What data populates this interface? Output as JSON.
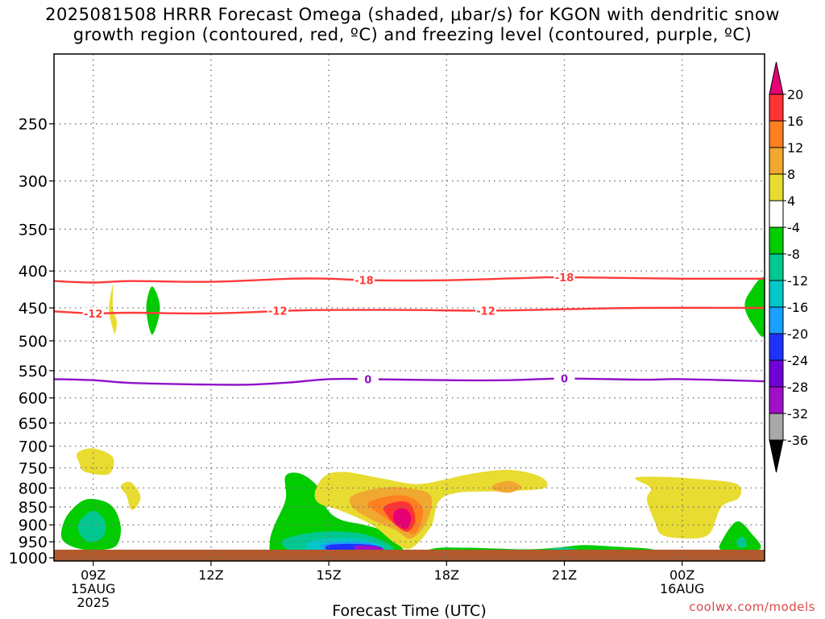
{
  "title": {
    "line1": "2025081508 HRRR Forecast Omega (shaded, μbar/s) for KGON with dendritic snow",
    "line2": "growth region (contoured, red, ºC) and freezing level (contoured, purple, ºC)"
  },
  "watermark": "coolwx.com/models",
  "chart_data": {
    "type": "heatmap",
    "xlabel": "Forecast Time (UTC)",
    "ylabel": "",
    "x_ticks": [
      {
        "hour": 9,
        "lines": [
          "09Z",
          "15AUG",
          "2025"
        ]
      },
      {
        "hour": 12,
        "lines": [
          "12Z"
        ]
      },
      {
        "hour": 15,
        "lines": [
          "15Z"
        ]
      },
      {
        "hour": 18,
        "lines": [
          "18Z"
        ]
      },
      {
        "hour": 21,
        "lines": [
          "21Z"
        ]
      },
      {
        "hour": 24,
        "lines": [
          "00Z",
          "16AUG"
        ]
      }
    ],
    "xlim_hours": [
      8.0,
      26.1
    ],
    "y_ticks": [
      250,
      300,
      350,
      400,
      450,
      500,
      550,
      600,
      650,
      700,
      750,
      800,
      850,
      900,
      950,
      1000
    ],
    "ylim_hpa": [
      200,
      1010
    ],
    "y_scale": "log-pressure (top 200 hPa)",
    "grid": true,
    "colorbar": {
      "labels": [
        "20",
        "16",
        "12",
        "8",
        "4",
        "-4",
        "-8",
        "-12",
        "-16",
        "-20",
        "-24",
        "-28",
        "-32",
        "-36"
      ],
      "colors": [
        "#e60073",
        "#ff3333",
        "#ff8020",
        "#f0a830",
        "#e8dc30",
        "#ffffff",
        "#00cc00",
        "#00c890",
        "#00c8c8",
        "#1aa0ff",
        "#1e32ff",
        "#7000d8",
        "#a010c8",
        "#a8a8a8",
        "#000000"
      ]
    },
    "contours": [
      {
        "name": "DGZ -18",
        "color": "#ff3a3a",
        "label": "-18",
        "points": [
          [
            8.0,
            413
          ],
          [
            9.0,
            415
          ],
          [
            10.0,
            413
          ],
          [
            12.0,
            414
          ],
          [
            14.0,
            410
          ],
          [
            15.0,
            410
          ],
          [
            16.0,
            412
          ],
          [
            18.0,
            412
          ],
          [
            20.0,
            409
          ],
          [
            21.0,
            408
          ],
          [
            24.0,
            410
          ],
          [
            26.1,
            410
          ]
        ],
        "labels_at": [
          [
            15.9,
            412
          ],
          [
            21.0,
            408
          ]
        ]
      },
      {
        "name": "DGZ -12",
        "color": "#ff3a3a",
        "label": "-12",
        "points": [
          [
            8.0,
            455
          ],
          [
            9.0,
            458
          ],
          [
            10.0,
            457
          ],
          [
            12.0,
            458
          ],
          [
            14.0,
            454
          ],
          [
            15.0,
            453
          ],
          [
            17.0,
            453
          ],
          [
            19.0,
            454
          ],
          [
            21.0,
            452
          ],
          [
            23.0,
            450
          ],
          [
            26.1,
            450
          ]
        ],
        "labels_at": [
          [
            9.0,
            458
          ],
          [
            13.7,
            454
          ],
          [
            19.0,
            454
          ]
        ]
      },
      {
        "name": "Freezing level 0",
        "color": "#9010c8",
        "label": "0",
        "points": [
          [
            8.0,
            565
          ],
          [
            9.0,
            567
          ],
          [
            10.0,
            572
          ],
          [
            12.0,
            575
          ],
          [
            13.0,
            575
          ],
          [
            14.0,
            571
          ],
          [
            15.0,
            565
          ],
          [
            16.0,
            565
          ],
          [
            18.0,
            567
          ],
          [
            19.5,
            567
          ],
          [
            21.0,
            564
          ],
          [
            23.0,
            566
          ],
          [
            24.0,
            565
          ],
          [
            26.1,
            569
          ]
        ],
        "labels_at": [
          [
            16.0,
            565
          ],
          [
            21.0,
            564
          ]
        ]
      }
    ],
    "omega_regions": [
      {
        "value": 4,
        "points": [
          [
            9.5,
            450
          ],
          [
            9.6,
            470
          ],
          [
            9.55,
            488
          ],
          [
            9.45,
            470
          ],
          [
            9.4,
            450
          ],
          [
            9.5,
            418
          ]
        ]
      },
      {
        "value": -4,
        "points": [
          [
            10.5,
            420
          ],
          [
            10.7,
            450
          ],
          [
            10.5,
            490
          ],
          [
            10.35,
            450
          ]
        ]
      },
      {
        "value": 4,
        "points": [
          [
            8.6,
            715
          ],
          [
            9.0,
            705
          ],
          [
            9.5,
            725
          ],
          [
            9.4,
            765
          ],
          [
            8.8,
            760
          ],
          [
            8.65,
            740
          ]
        ]
      },
      {
        "value": 4,
        "points": [
          [
            9.7,
            795
          ],
          [
            9.95,
            785
          ],
          [
            10.2,
            820
          ],
          [
            10.1,
            850
          ],
          [
            9.95,
            855
          ],
          [
            9.85,
            820
          ]
        ]
      },
      {
        "value": -4,
        "points": [
          [
            8.3,
            880
          ],
          [
            8.7,
            835
          ],
          [
            9.1,
            830
          ],
          [
            9.5,
            850
          ],
          [
            9.7,
            905
          ],
          [
            9.6,
            960
          ],
          [
            9.2,
            975
          ],
          [
            8.6,
            970
          ],
          [
            8.2,
            940
          ]
        ]
      },
      {
        "value": -8,
        "points": [
          [
            8.65,
            890
          ],
          [
            9.0,
            860
          ],
          [
            9.3,
            890
          ],
          [
            9.25,
            935
          ],
          [
            8.9,
            950
          ],
          [
            8.65,
            925
          ]
        ]
      },
      {
        "value": -4,
        "points": [
          [
            13.6,
            905
          ],
          [
            13.9,
            830
          ],
          [
            13.9,
            770
          ],
          [
            14.3,
            765
          ],
          [
            14.75,
            800
          ],
          [
            14.95,
            855
          ],
          [
            15.3,
            885
          ],
          [
            15.9,
            900
          ],
          [
            16.4,
            920
          ],
          [
            16.9,
            975
          ],
          [
            16.6,
            995
          ],
          [
            14.5,
            995
          ],
          [
            13.6,
            985
          ],
          [
            13.5,
            950
          ]
        ]
      },
      {
        "value": -8,
        "points": [
          [
            13.9,
            940
          ],
          [
            14.8,
            920
          ],
          [
            15.8,
            925
          ],
          [
            16.5,
            955
          ],
          [
            16.6,
            985
          ],
          [
            15.7,
            990
          ],
          [
            14.5,
            985
          ],
          [
            13.9,
            970
          ]
        ]
      },
      {
        "value": -12,
        "points": [
          [
            14.5,
            950
          ],
          [
            15.2,
            940
          ],
          [
            16.0,
            945
          ],
          [
            16.4,
            970
          ],
          [
            16.0,
            985
          ],
          [
            15.0,
            985
          ],
          [
            14.5,
            975
          ]
        ]
      },
      {
        "value": -16,
        "points": [
          [
            14.8,
            960
          ],
          [
            15.4,
            950
          ],
          [
            16.1,
            955
          ],
          [
            16.3,
            975
          ],
          [
            15.6,
            985
          ],
          [
            15.0,
            980
          ]
        ]
      },
      {
        "value": -20,
        "points": [
          [
            15.0,
            960
          ],
          [
            15.8,
            957
          ],
          [
            16.3,
            965
          ],
          [
            16.3,
            977
          ],
          [
            15.6,
            982
          ],
          [
            15.0,
            977
          ]
        ]
      },
      {
        "value": -28,
        "points": [
          [
            15.7,
            962
          ],
          [
            16.2,
            964
          ],
          [
            16.4,
            975
          ],
          [
            16.0,
            980
          ],
          [
            15.7,
            975
          ]
        ]
      },
      {
        "value": 4,
        "points": [
          [
            14.65,
            810
          ],
          [
            14.9,
            770
          ],
          [
            15.4,
            760
          ],
          [
            16.3,
            775
          ],
          [
            17.2,
            790
          ],
          [
            17.9,
            780
          ],
          [
            18.6,
            765
          ],
          [
            19.6,
            755
          ],
          [
            20.4,
            772
          ],
          [
            20.5,
            800
          ],
          [
            19.5,
            808
          ],
          [
            18.3,
            812
          ],
          [
            17.8,
            835
          ],
          [
            17.6,
            905
          ],
          [
            17.1,
            970
          ],
          [
            16.7,
            955
          ],
          [
            16.1,
            900
          ],
          [
            15.3,
            860
          ],
          [
            14.75,
            840
          ]
        ]
      },
      {
        "value": 8,
        "points": [
          [
            19.2,
            792
          ],
          [
            19.6,
            782
          ],
          [
            19.9,
            797
          ],
          [
            19.6,
            812
          ],
          [
            19.2,
            805
          ]
        ]
      },
      {
        "value": 8,
        "points": [
          [
            15.6,
            820
          ],
          [
            16.3,
            800
          ],
          [
            17.0,
            800
          ],
          [
            17.6,
            820
          ],
          [
            17.5,
            890
          ],
          [
            17.1,
            940
          ],
          [
            16.7,
            915
          ],
          [
            16.0,
            880
          ],
          [
            15.6,
            850
          ]
        ]
      },
      {
        "value": 12,
        "points": [
          [
            16.0,
            840
          ],
          [
            16.6,
            820
          ],
          [
            17.1,
            825
          ],
          [
            17.4,
            860
          ],
          [
            17.2,
            925
          ],
          [
            16.8,
            905
          ],
          [
            16.3,
            870
          ]
        ]
      },
      {
        "value": 16,
        "points": [
          [
            16.4,
            850
          ],
          [
            16.8,
            835
          ],
          [
            17.1,
            845
          ],
          [
            17.2,
            890
          ],
          [
            17.0,
            920
          ],
          [
            16.7,
            900
          ],
          [
            16.5,
            875
          ]
        ]
      },
      {
        "value": 20,
        "points": [
          [
            16.7,
            860
          ],
          [
            16.95,
            855
          ],
          [
            17.1,
            880
          ],
          [
            17.0,
            910
          ],
          [
            16.8,
            905
          ],
          [
            16.65,
            885
          ]
        ]
      },
      {
        "value": -4,
        "points": [
          [
            17.4,
            992
          ],
          [
            17.7,
            970
          ],
          [
            18.5,
            968
          ],
          [
            20.0,
            973
          ],
          [
            20.8,
            968
          ],
          [
            21.5,
            960
          ],
          [
            22.3,
            965
          ],
          [
            23.2,
            972
          ],
          [
            23.3,
            985
          ],
          [
            22.6,
            992
          ],
          [
            21.5,
            995
          ],
          [
            19.0,
            995
          ]
        ]
      },
      {
        "value": -8,
        "points": [
          [
            20.6,
            973
          ],
          [
            21.0,
            968
          ],
          [
            21.3,
            975
          ],
          [
            21.0,
            982
          ],
          [
            20.7,
            980
          ]
        ]
      },
      {
        "value": 4,
        "points": [
          [
            22.8,
            775
          ],
          [
            23.5,
            772
          ],
          [
            24.5,
            778
          ],
          [
            25.4,
            790
          ],
          [
            25.45,
            825
          ],
          [
            25.0,
            850
          ],
          [
            24.7,
            925
          ],
          [
            24.2,
            940
          ],
          [
            23.5,
            930
          ],
          [
            23.3,
            890
          ],
          [
            23.1,
            830
          ],
          [
            23.2,
            800
          ]
        ]
      },
      {
        "value": -4,
        "points": [
          [
            25.0,
            950
          ],
          [
            25.4,
            890
          ],
          [
            25.8,
            930
          ],
          [
            26.0,
            970
          ],
          [
            25.5,
            985
          ],
          [
            25.0,
            975
          ]
        ]
      },
      {
        "value": -8,
        "points": [
          [
            25.4,
            945
          ],
          [
            25.55,
            935
          ],
          [
            25.65,
            960
          ],
          [
            25.5,
            968
          ],
          [
            25.4,
            960
          ]
        ]
      },
      {
        "value": -4,
        "points": [
          [
            26.1,
            410
          ],
          [
            25.7,
            430
          ],
          [
            25.6,
            450
          ],
          [
            25.8,
            475
          ],
          [
            26.1,
            490
          ]
        ]
      }
    ],
    "terrain_color": "#b05a2e"
  }
}
